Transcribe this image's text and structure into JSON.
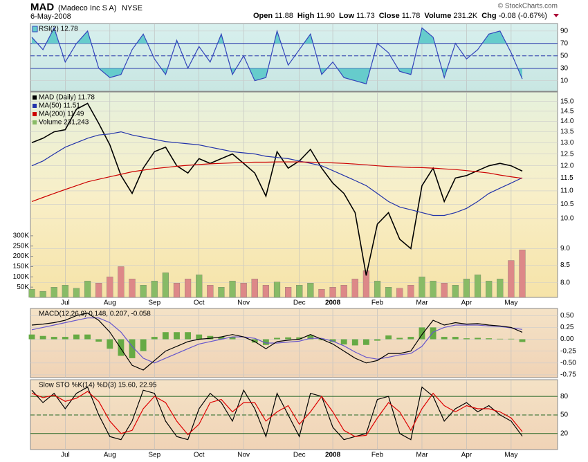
{
  "header": {
    "symbol": "MAD",
    "company": "(Madeco Inc S A)",
    "exchange": "NYSE",
    "date": "6-May-2008",
    "copyright": "© StockCharts.com",
    "quote": [
      {
        "label": "Open",
        "value": "11.88"
      },
      {
        "label": "High",
        "value": "11.90"
      },
      {
        "label": "Low",
        "value": "11.73"
      },
      {
        "label": "Close",
        "value": "11.78"
      },
      {
        "label": "Volume",
        "value": "231.2K"
      },
      {
        "label": "Chg",
        "value": "-0.08 (-0.67%)"
      }
    ]
  },
  "chart_data": [
    {
      "type": "line",
      "title": "RSI(2) 12.78",
      "ylim": [
        -7,
        102
      ],
      "yticks": [
        10,
        30,
        50,
        70,
        90
      ],
      "ref_lines": [
        30,
        50,
        70
      ],
      "ref_color": "#2233aa",
      "series": [
        {
          "color": "#3344bb",
          "fill": "#66cccc",
          "values": [
            80,
            60,
            95,
            40,
            70,
            90,
            30,
            15,
            20,
            60,
            85,
            45,
            20,
            75,
            30,
            65,
            40,
            85,
            20,
            50,
            10,
            15,
            90,
            35,
            60,
            85,
            20,
            40,
            15,
            10,
            5,
            70,
            55,
            25,
            20,
            95,
            80,
            15,
            70,
            45,
            60,
            85,
            90,
            55,
            12.78
          ]
        }
      ]
    },
    {
      "type": "line",
      "log": true,
      "ylim": [
        7.6,
        15.5
      ],
      "yticks": [
        {
          "value": 8,
          "label": "8.0"
        },
        8.5,
        {
          "value": 9,
          "label": "9.0"
        },
        {
          "value": 10,
          "label": "10.0"
        },
        10.5,
        {
          "value": 11,
          "label": "11.0"
        },
        11.5,
        {
          "value": 12,
          "label": "12.0"
        },
        12.5,
        {
          "value": 13,
          "label": "13.0"
        },
        13.5,
        {
          "value": 14,
          "label": "14.0"
        },
        14.5,
        {
          "value": 15,
          "label": "15.0"
        }
      ],
      "y2lim": [
        0,
        1000000
      ],
      "y2ticks": [
        {
          "value": 50000,
          "label": "50K"
        },
        {
          "value": 100000,
          "label": "100K"
        },
        {
          "value": 150000,
          "label": "150K"
        },
        {
          "value": 200000,
          "label": "200K"
        },
        {
          "value": 250000,
          "label": "250K"
        },
        {
          "value": 300000,
          "label": "300K"
        }
      ],
      "categories": [
        null,
        null,
        null,
        "Jul",
        null,
        null,
        null,
        "Aug",
        null,
        null,
        null,
        "Sep",
        null,
        null,
        null,
        "Oct",
        null,
        null,
        null,
        "Nov",
        null,
        null,
        null,
        null,
        "Dec",
        null,
        null,
        "2008",
        null,
        null,
        null,
        "Feb",
        null,
        null,
        null,
        "Mar",
        null,
        null,
        null,
        "Apr",
        null,
        null,
        null,
        "May",
        null
      ],
      "series": [
        {
          "name": "MAD (Daily) 11.78",
          "color": "#000000",
          "values": [
            13.0,
            13.2,
            13.5,
            13.6,
            14.6,
            14.9,
            13.9,
            12.9,
            11.6,
            10.9,
            11.9,
            12.6,
            12.8,
            12.0,
            11.7,
            12.3,
            12.1,
            12.3,
            12.5,
            12.1,
            11.7,
            10.8,
            12.6,
            11.9,
            12.2,
            12.7,
            11.9,
            11.3,
            10.9,
            10.2,
            8.2,
            9.8,
            10.2,
            9.3,
            9.0,
            11.2,
            11.9,
            10.6,
            11.5,
            11.6,
            11.8,
            12.0,
            12.1,
            12.0,
            11.78
          ]
        },
        {
          "name": "MA(50) 11.51",
          "color": "#2233aa",
          "values": [
            12.0,
            12.2,
            12.5,
            12.8,
            13.0,
            13.2,
            13.35,
            13.4,
            13.5,
            13.35,
            13.25,
            13.15,
            13.05,
            13.0,
            12.95,
            12.9,
            12.8,
            12.7,
            12.6,
            12.55,
            12.5,
            12.4,
            12.35,
            12.3,
            12.2,
            12.1,
            12.0,
            11.8,
            11.6,
            11.4,
            11.2,
            10.9,
            10.6,
            10.4,
            10.3,
            10.2,
            10.1,
            10.1,
            10.2,
            10.35,
            10.6,
            10.9,
            11.1,
            11.3,
            11.51
          ]
        },
        {
          "name": "MA(200) 11.49",
          "color": "#cc0000",
          "values": [
            10.6,
            10.75,
            10.9,
            11.05,
            11.2,
            11.35,
            11.45,
            11.55,
            11.65,
            11.75,
            11.82,
            11.88,
            11.93,
            11.98,
            12.02,
            12.05,
            12.08,
            12.1,
            12.12,
            12.14,
            12.15,
            12.15,
            12.16,
            12.16,
            12.16,
            12.15,
            12.14,
            12.12,
            12.1,
            12.07,
            12.04,
            12.0,
            11.97,
            11.95,
            11.93,
            11.92,
            11.9,
            11.87,
            11.84,
            11.8,
            11.75,
            11.7,
            11.62,
            11.55,
            11.49
          ]
        },
        {
          "name": "Volume 231,243",
          "type": "bar",
          "axis": "y2",
          "color": "#88bb66",
          "down_color": "#dd8888",
          "values": [
            40000,
            30000,
            50000,
            60000,
            45000,
            80000,
            70000,
            100000,
            150000,
            90000,
            60000,
            80000,
            120000,
            70000,
            90000,
            110000,
            60000,
            50000,
            80000,
            70000,
            90000,
            60000,
            75000,
            50000,
            60000,
            70000,
            40000,
            50000,
            60000,
            90000,
            130000,
            80000,
            50000,
            45000,
            60000,
            100000,
            80000,
            70000,
            60000,
            90000,
            110000,
            80000,
            90000,
            180000,
            231243
          ]
        }
      ]
    },
    {
      "type": "line",
      "title": "MACD(12,26,9) 0.148, 0.207, -0.058",
      "ylim": [
        -0.81,
        0.65
      ],
      "yticks": [
        {
          "value": -0.75,
          "label": "-0.75"
        },
        {
          "value": -0.5,
          "label": "-0.50"
        },
        {
          "value": -0.25,
          "label": "-0.25"
        },
        {
          "value": 0,
          "label": "0.00"
        },
        {
          "value": 0.25,
          "label": "0.25"
        },
        {
          "value": 0.5,
          "label": "0.50"
        }
      ],
      "series": [
        {
          "type": "bar",
          "color": "#66aa44",
          "values": [
            0.1,
            0.07,
            0.05,
            0.05,
            0.1,
            0.1,
            -0.05,
            -0.2,
            -0.35,
            -0.4,
            -0.25,
            0.05,
            0.15,
            0.15,
            0.15,
            0.1,
            0.07,
            0.05,
            0.05,
            0.0,
            -0.07,
            -0.12,
            0.03,
            0.04,
            0.04,
            0.08,
            -0.02,
            -0.06,
            -0.11,
            -0.13,
            -0.12,
            -0.03,
            0.08,
            0.03,
            0.05,
            0.25,
            0.25,
            0.05,
            0.05,
            0.02,
            0.03,
            0.02,
            0.01,
            0.01,
            -0.058
          ]
        },
        {
          "color": "#6655cc",
          "values": [
            0.2,
            0.25,
            0.3,
            0.35,
            0.4,
            0.45,
            0.45,
            0.35,
            0.15,
            -0.15,
            -0.4,
            -0.5,
            -0.4,
            -0.3,
            -0.2,
            -0.1,
            -0.05,
            0.0,
            0.05,
            0.05,
            0.02,
            -0.08,
            -0.08,
            -0.06,
            -0.04,
            0.02,
            0.02,
            -0.04,
            -0.14,
            -0.27,
            -0.38,
            -0.42,
            -0.38,
            -0.33,
            -0.3,
            -0.15,
            0.15,
            0.25,
            0.3,
            0.3,
            0.3,
            0.28,
            0.27,
            0.24,
            0.207
          ]
        },
        {
          "color": "#000000",
          "values": [
            0.3,
            0.32,
            0.35,
            0.4,
            0.5,
            0.55,
            0.4,
            0.15,
            -0.2,
            -0.55,
            -0.65,
            -0.45,
            -0.25,
            -0.15,
            -0.05,
            0.0,
            0.02,
            0.05,
            0.1,
            0.05,
            -0.05,
            -0.2,
            -0.05,
            -0.02,
            0.0,
            0.1,
            0.0,
            -0.1,
            -0.25,
            -0.4,
            -0.5,
            -0.45,
            -0.3,
            -0.3,
            -0.25,
            0.1,
            0.4,
            0.3,
            0.35,
            0.32,
            0.33,
            0.3,
            0.28,
            0.25,
            0.148
          ]
        }
      ]
    },
    {
      "type": "line",
      "title": "Slow STO %K(14) %D(3) 15.60, 22.95",
      "ylim": [
        -6,
        107
      ],
      "yticks": [
        20,
        50,
        80
      ],
      "ref_lines": [
        20,
        50,
        80
      ],
      "ref_color": "#226622",
      "categories": [
        null,
        null,
        null,
        "Jul",
        null,
        null,
        null,
        "Aug",
        null,
        null,
        null,
        "Sep",
        null,
        null,
        null,
        "Oct",
        null,
        null,
        null,
        "Nov",
        null,
        null,
        null,
        null,
        "Dec",
        null,
        null,
        "2008",
        null,
        null,
        null,
        "Feb",
        null,
        null,
        null,
        "Mar",
        null,
        null,
        null,
        "Apr",
        null,
        null,
        null,
        "May",
        null
      ],
      "series": [
        {
          "color": "#000000",
          "values": [
            90,
            70,
            85,
            60,
            85,
            95,
            50,
            15,
            10,
            40,
            90,
            85,
            40,
            15,
            10,
            60,
            85,
            70,
            40,
            90,
            60,
            15,
            85,
            50,
            15,
            85,
            80,
            30,
            10,
            15,
            20,
            75,
            80,
            20,
            10,
            95,
            80,
            40,
            60,
            70,
            55,
            65,
            50,
            40,
            15.6
          ]
        },
        {
          "color": "#dd0000",
          "values": [
            85,
            78,
            82,
            72,
            77,
            88,
            72,
            40,
            20,
            25,
            60,
            80,
            70,
            40,
            18,
            35,
            70,
            75,
            55,
            70,
            70,
            40,
            55,
            65,
            35,
            55,
            80,
            55,
            25,
            15,
            17,
            45,
            70,
            55,
            25,
            60,
            85,
            65,
            55,
            65,
            60,
            60,
            55,
            45,
            22.95
          ]
        }
      ]
    }
  ]
}
